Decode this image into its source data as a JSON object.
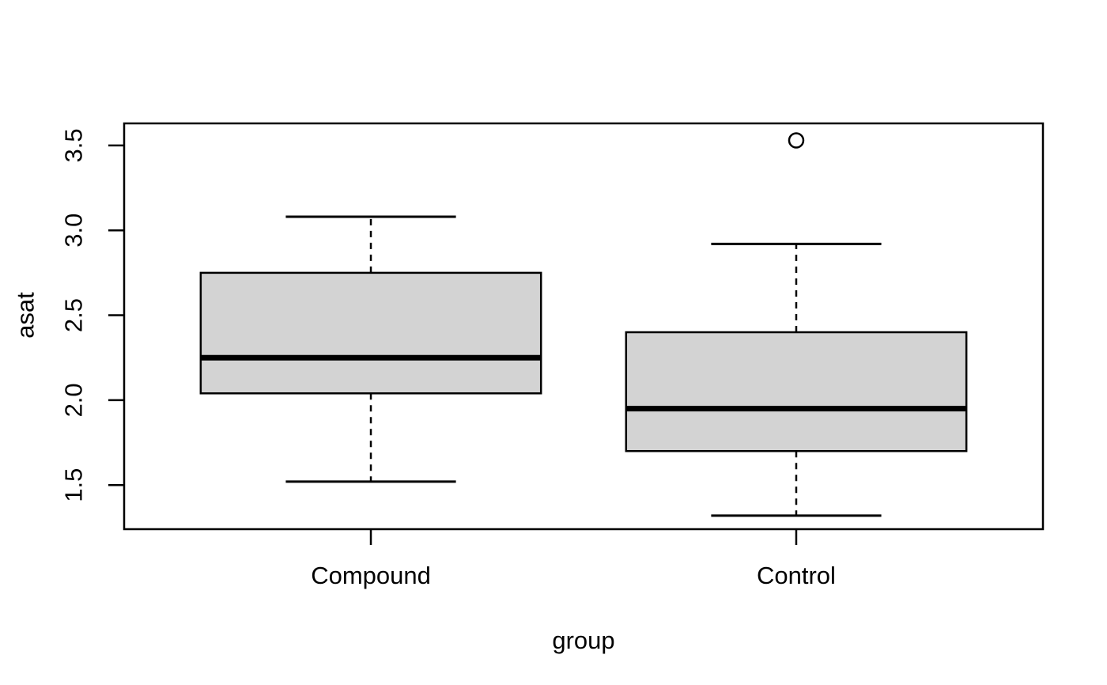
{
  "figure": {
    "background": "#ffffff"
  },
  "chart_data": {
    "type": "boxplot",
    "title": "",
    "xlabel": "group",
    "ylabel": "asat",
    "categories": [
      "Compound",
      "Control"
    ],
    "series": [
      {
        "name": "Compound",
        "lower_whisker": 1.52,
        "q1": 2.04,
        "median": 2.25,
        "q3": 2.75,
        "upper_whisker": 3.08,
        "outliers": []
      },
      {
        "name": "Control",
        "lower_whisker": 1.32,
        "q1": 1.7,
        "median": 1.95,
        "q3": 2.4,
        "upper_whisker": 2.92,
        "outliers": [
          3.53
        ]
      }
    ],
    "x_positions": [
      1,
      2
    ],
    "yticks": [
      1.5,
      2.0,
      2.5,
      3.0,
      3.5
    ],
    "ytick_labels": [
      "1.5",
      "2.0",
      "2.5",
      "3.0",
      "3.5"
    ],
    "ylim": [
      1.24,
      3.63
    ],
    "xlim": [
      0.42,
      2.58
    ],
    "box_width": 0.8,
    "cap_width": 0.4,
    "grid": false,
    "legend": null,
    "colors": {
      "box_fill": "#d3d3d3",
      "stroke": "#000000",
      "background": "#ffffff"
    }
  }
}
